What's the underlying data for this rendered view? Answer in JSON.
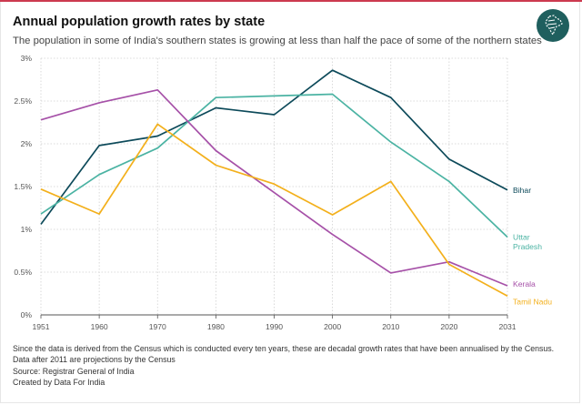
{
  "title": "Annual population growth rates by state",
  "subtitle": "The population in some of India's southern states is growing at less than half the pace of some of the northern states",
  "logo_icon": "india-map-icon",
  "notes": {
    "line1": "Since the data is derived from the Census which is conducted every ten years, these are decadal growth rates that have been annualised by the Census.",
    "line2": "Data after 2011 are projections by the Census",
    "source": "Source: Registrar General of India",
    "credit": "Created by Data For India"
  },
  "chart_data": {
    "type": "line",
    "title": "Annual population growth rates by state",
    "xlabel": "",
    "ylabel": "",
    "x": [
      1951,
      1961,
      1971,
      1981,
      1991,
      2001,
      2011,
      2021,
      2031
    ],
    "xticks": [
      "1951",
      "1960",
      "1970",
      "1980",
      "1990",
      "2000",
      "2010",
      "2020",
      "2031"
    ],
    "yticks": [
      0,
      0.5,
      1,
      1.5,
      2,
      2.5,
      3
    ],
    "ytick_labels": [
      "0%",
      "0.5%",
      "1%",
      "1.5%",
      "2%",
      "2.5%",
      "3%"
    ],
    "ylim": [
      0,
      3
    ],
    "xlim": [
      1951,
      2031
    ],
    "grid": true,
    "legend": "direct labels at line ends (right)",
    "series": [
      {
        "name": "Bihar",
        "label_lines": [
          "Bihar"
        ],
        "color": "#0d4a5a",
        "values": [
          1.06,
          1.98,
          2.09,
          2.42,
          2.34,
          2.86,
          2.54,
          1.82,
          1.46
        ]
      },
      {
        "name": "Uttar Pradesh",
        "label_lines": [
          "Uttar",
          "Pradesh"
        ],
        "color": "#4bb3a3",
        "values": [
          1.18,
          1.64,
          1.95,
          2.54,
          2.56,
          2.58,
          2.02,
          1.56,
          0.91
        ]
      },
      {
        "name": "Kerala",
        "label_lines": [
          "Kerala"
        ],
        "color": "#a651a8",
        "values": [
          2.28,
          2.48,
          2.63,
          1.92,
          1.43,
          0.94,
          0.49,
          0.62,
          0.34
        ]
      },
      {
        "name": "Tamil Nadu",
        "label_lines": [
          "Tamil Nadu"
        ],
        "color": "#f3b01c",
        "values": [
          1.47,
          1.18,
          2.23,
          1.75,
          1.53,
          1.17,
          1.56,
          0.59,
          0.22
        ]
      }
    ]
  }
}
